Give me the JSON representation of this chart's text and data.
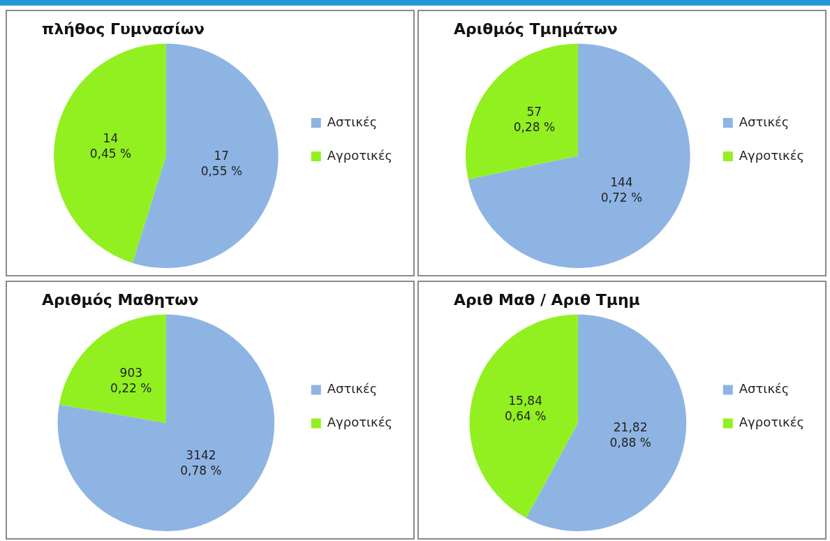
{
  "chart_data": [
    {
      "type": "pie",
      "title": "πλήθος Γυμνασίων",
      "categories": [
        "Αστικές",
        "Αγροτικές"
      ],
      "values": [
        17,
        14
      ],
      "colors": [
        "#8eb4e3",
        "#92f020"
      ],
      "value_labels": [
        "17\n0,55 %",
        "14\n0,45 %"
      ],
      "legend": "right"
    },
    {
      "type": "pie",
      "title": "Αριθμός Τμημάτων",
      "categories": [
        "Αστικές",
        "Αγροτικές"
      ],
      "values": [
        144,
        57
      ],
      "colors": [
        "#8eb4e3",
        "#92f020"
      ],
      "value_labels": [
        "144\n0,72 %",
        "57\n0,28 %"
      ],
      "legend": "right"
    },
    {
      "type": "pie",
      "title": "Αριθμός Μαθητων",
      "categories": [
        "Αστικές",
        "Αγροτικές"
      ],
      "values": [
        3142,
        903
      ],
      "colors": [
        "#8eb4e3",
        "#92f020"
      ],
      "value_labels": [
        "3142\n0,78 %",
        "903\n0,22 %"
      ],
      "legend": "right"
    },
    {
      "type": "pie",
      "title": "Αριθ Μαθ / Αριθ Τμημ",
      "categories": [
        "Αστικές",
        "Αγροτικές"
      ],
      "values": [
        21.82,
        15.84
      ],
      "colors": [
        "#8eb4e3",
        "#92f020"
      ],
      "value_labels": [
        "21,82\n0,88 %",
        "15,84\n0,64 %"
      ],
      "legend": "right"
    }
  ]
}
